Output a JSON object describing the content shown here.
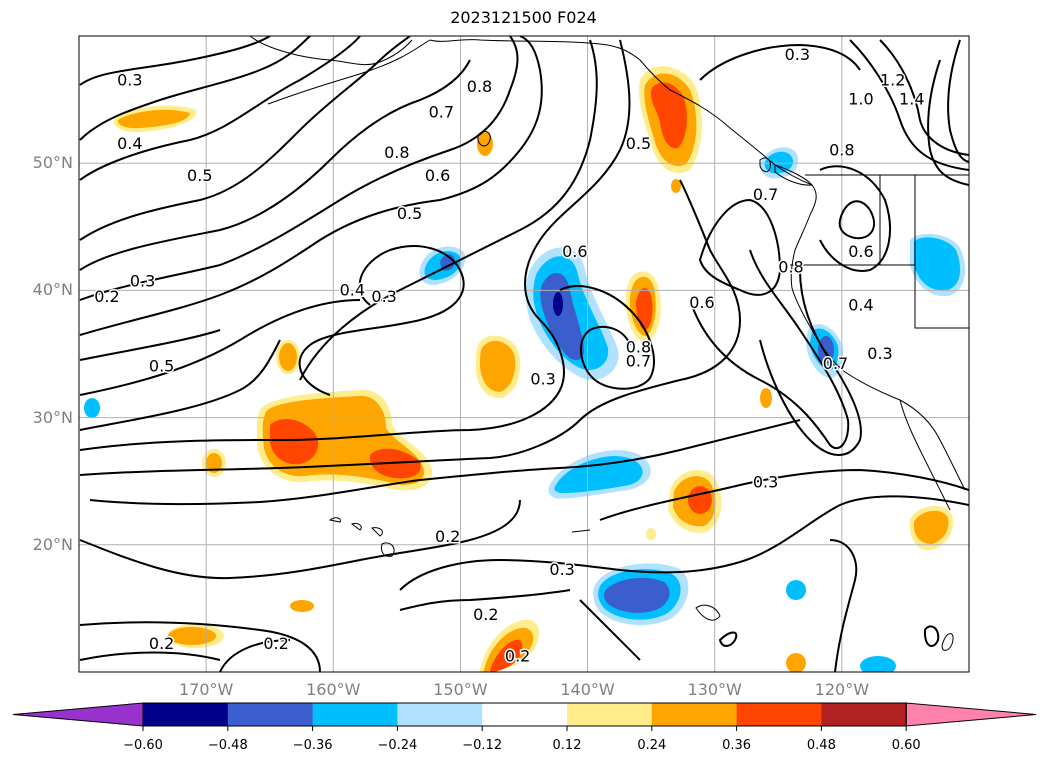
{
  "title": "2023121500 F024",
  "map": {
    "lon_range": [
      -180,
      -110
    ],
    "lat_range": [
      10,
      60
    ],
    "lat_labels": [
      {
        "lat": 50,
        "text": "50°N"
      },
      {
        "lat": 40,
        "text": "40°N"
      },
      {
        "lat": 30,
        "text": "30°N"
      },
      {
        "lat": 20,
        "text": "20°N"
      }
    ],
    "lon_labels": [
      {
        "lon": -170,
        "text": "170°W"
      },
      {
        "lon": -160,
        "text": "160°W"
      },
      {
        "lon": -150,
        "text": "150°W"
      },
      {
        "lon": -140,
        "text": "140°W"
      },
      {
        "lon": -130,
        "text": "130°W"
      },
      {
        "lon": -120,
        "text": "120°W"
      }
    ],
    "contour_labels": [
      {
        "lon": -176.0,
        "lat": 56.5,
        "text": "0.3"
      },
      {
        "lon": -176.0,
        "lat": 51.5,
        "text": "0.4"
      },
      {
        "lon": -170.5,
        "lat": 49.0,
        "text": "0.5"
      },
      {
        "lon": -148.5,
        "lat": 56.0,
        "text": "0.8"
      },
      {
        "lon": -151.5,
        "lat": 54.0,
        "text": "0.7"
      },
      {
        "lon": -155.0,
        "lat": 50.8,
        "text": "0.8"
      },
      {
        "lon": -151.8,
        "lat": 49.0,
        "text": "0.6"
      },
      {
        "lon": -154.0,
        "lat": 46.0,
        "text": "0.5"
      },
      {
        "lon": -175.0,
        "lat": 40.7,
        "text": "0.3"
      },
      {
        "lon": -177.8,
        "lat": 39.5,
        "text": "0.2"
      },
      {
        "lon": -158.5,
        "lat": 40.0,
        "text": "0.4"
      },
      {
        "lon": -156.0,
        "lat": 39.5,
        "text": "0.3"
      },
      {
        "lon": -173.5,
        "lat": 34.0,
        "text": "0.5"
      },
      {
        "lon": -141.0,
        "lat": 43.0,
        "text": "0.6"
      },
      {
        "lon": -136.0,
        "lat": 51.5,
        "text": "0.5"
      },
      {
        "lon": -123.5,
        "lat": 58.5,
        "text": "0.3"
      },
      {
        "lon": -126.0,
        "lat": 47.5,
        "text": "0.7"
      },
      {
        "lon": -124.0,
        "lat": 41.8,
        "text": "0.8"
      },
      {
        "lon": -131.0,
        "lat": 39.0,
        "text": "0.6"
      },
      {
        "lon": -118.5,
        "lat": 43.0,
        "text": "0.6"
      },
      {
        "lon": -118.5,
        "lat": 38.8,
        "text": "0.4"
      },
      {
        "lon": -136.0,
        "lat": 35.5,
        "text": "0.8"
      },
      {
        "lon": -136.0,
        "lat": 34.4,
        "text": "0.7"
      },
      {
        "lon": -143.5,
        "lat": 33.0,
        "text": "0.3"
      },
      {
        "lon": -117.0,
        "lat": 35.0,
        "text": "0.3"
      },
      {
        "lon": -120.5,
        "lat": 34.2,
        "text": "0.7"
      },
      {
        "lon": -126.0,
        "lat": 24.9,
        "text": "0.3"
      },
      {
        "lon": -151.0,
        "lat": 20.6,
        "text": "0.2"
      },
      {
        "lon": -142.0,
        "lat": 18.0,
        "text": "0.3"
      },
      {
        "lon": -148.0,
        "lat": 14.5,
        "text": "0.2"
      },
      {
        "lon": -173.5,
        "lat": 12.2,
        "text": "0.2"
      },
      {
        "lon": -164.5,
        "lat": 12.2,
        "text": "0.2"
      },
      {
        "lon": -145.5,
        "lat": 11.2,
        "text": "0.2"
      },
      {
        "lon": -118.5,
        "lat": 55.0,
        "text": "1.0"
      },
      {
        "lon": -116.0,
        "lat": 56.5,
        "text": "1.2"
      },
      {
        "lon": -114.5,
        "lat": 55.0,
        "text": "1.4"
      },
      {
        "lon": -120.0,
        "lat": 51.0,
        "text": "0.8"
      }
    ]
  },
  "colorbar": {
    "ticks": [
      "−0.60",
      "−0.48",
      "−0.36",
      "−0.24",
      "−0.12",
      "0.12",
      "0.24",
      "0.36",
      "0.48",
      "0.60"
    ],
    "colors": [
      "#9932cc",
      "#00008b",
      "#3a5fcd",
      "#00bfff",
      "#b0e2ff",
      "#ffffff",
      "#ffec8b",
      "#ffa500",
      "#ff4500",
      "#b22222",
      "#ff82ab"
    ]
  }
}
